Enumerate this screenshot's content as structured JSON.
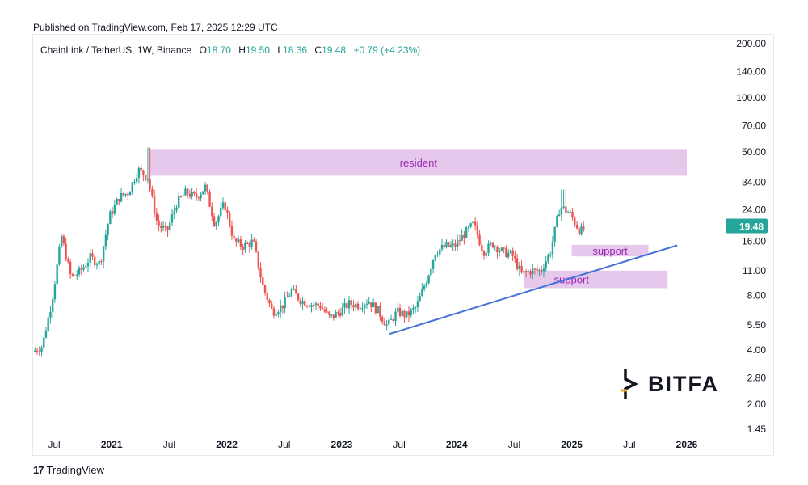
{
  "header": {
    "published": "Published on TradingView.com, Feb 17, 2025 12:29 UTC"
  },
  "legend": {
    "symbol": "ChainLink / TetherUS, 1W, Binance",
    "open_label": "O",
    "open": "18.70",
    "high_label": "H",
    "high": "19.50",
    "low_label": "L",
    "low": "18.36",
    "close_label": "C",
    "close": "19.48",
    "change": "+0.79 (+4.23%)"
  },
  "footer": {
    "brand": "TradingView",
    "brand_mark": "17"
  },
  "watermark": {
    "text": "BITFA"
  },
  "colors": {
    "up": "#26a69a",
    "down": "#ef5350",
    "zone": "#e1bee7",
    "zone_text": "#9c27b0",
    "trendline": "#4472d8",
    "price_tag": "#26a69a"
  },
  "chart_data": {
    "type": "candlestick",
    "scale": "log",
    "ylim": [
      1.3,
      230
    ],
    "y_ticks": [
      "200.00",
      "140.00",
      "100.00",
      "70.00",
      "50.00",
      "34.00",
      "24.00",
      "16.00",
      "11.00",
      "8.00",
      "5.50",
      "4.00",
      "2.80",
      "2.00",
      "1.45"
    ],
    "x_range": [
      "2020-05",
      "2026-03"
    ],
    "x_ticks": [
      {
        "label": "Jul",
        "t": "2020-07"
      },
      {
        "label": "2021",
        "t": "2021-01"
      },
      {
        "label": "Jul",
        "t": "2021-07"
      },
      {
        "label": "2022",
        "t": "2022-01"
      },
      {
        "label": "Jul",
        "t": "2022-07"
      },
      {
        "label": "2023",
        "t": "2023-01"
      },
      {
        "label": "Jul",
        "t": "2023-07"
      },
      {
        "label": "2024",
        "t": "2024-01"
      },
      {
        "label": "Jul",
        "t": "2024-07"
      },
      {
        "label": "2025",
        "t": "2025-01"
      },
      {
        "label": "Jul",
        "t": "2025-07"
      },
      {
        "label": "2026",
        "t": "2026-01"
      }
    ],
    "current_price": "19.48",
    "price_path": [
      [
        "2020-05",
        3.9
      ],
      [
        "2020-06",
        4.2
      ],
      [
        "2020-07",
        7.5
      ],
      [
        "2020-08",
        17
      ],
      [
        "2020-09",
        10
      ],
      [
        "2020-10",
        11
      ],
      [
        "2020-11",
        13
      ],
      [
        "2020-12",
        12
      ],
      [
        "2021-01",
        22
      ],
      [
        "2021-02",
        28
      ],
      [
        "2021-03",
        30
      ],
      [
        "2021-04",
        40
      ],
      [
        "2021-05",
        36
      ],
      [
        "2021-06",
        20
      ],
      [
        "2021-07",
        18
      ],
      [
        "2021-08",
        26
      ],
      [
        "2021-09",
        30
      ],
      [
        "2021-10",
        28
      ],
      [
        "2021-11",
        32
      ],
      [
        "2021-12",
        20
      ],
      [
        "2022-01",
        26
      ],
      [
        "2022-02",
        16
      ],
      [
        "2022-03",
        15
      ],
      [
        "2022-04",
        16
      ],
      [
        "2022-05",
        9
      ],
      [
        "2022-06",
        6.5
      ],
      [
        "2022-07",
        7
      ],
      [
        "2022-08",
        8.5
      ],
      [
        "2022-09",
        7.5
      ],
      [
        "2022-10",
        7.2
      ],
      [
        "2022-11",
        7
      ],
      [
        "2022-12",
        6
      ],
      [
        "2023-01",
        6.5
      ],
      [
        "2023-02",
        7.2
      ],
      [
        "2023-03",
        7.1
      ],
      [
        "2023-04",
        7.5
      ],
      [
        "2023-05",
        6.6
      ],
      [
        "2023-06",
        5.4
      ],
      [
        "2023-07",
        6.5
      ],
      [
        "2023-08",
        6.2
      ],
      [
        "2023-09",
        6.9
      ],
      [
        "2023-10",
        9.5
      ],
      [
        "2023-11",
        14
      ],
      [
        "2023-12",
        15
      ],
      [
        "2024-01",
        15
      ],
      [
        "2024-02",
        17.5
      ],
      [
        "2024-03",
        20
      ],
      [
        "2024-04",
        14
      ],
      [
        "2024-05",
        15.5
      ],
      [
        "2024-06",
        14
      ],
      [
        "2024-07",
        13.5
      ],
      [
        "2024-08",
        10.5
      ],
      [
        "2024-09",
        11
      ],
      [
        "2024-10",
        11
      ],
      [
        "2024-11",
        14
      ],
      [
        "2024-12",
        25
      ],
      [
        "2025-01",
        23
      ],
      [
        "2025-02",
        18.5
      ]
    ],
    "zones": [
      {
        "label": "resident",
        "y_low": 37,
        "y_high": 52,
        "t_start": "2021-05",
        "t_end": "2026-01"
      },
      {
        "label": "support",
        "y_low": 13.2,
        "y_high": 15.3,
        "t_start": "2025-01",
        "t_end": "2025-09"
      },
      {
        "label": "support",
        "y_low": 8.8,
        "y_high": 11.0,
        "t_start": "2024-08",
        "t_end": "2025-11"
      }
    ],
    "trendline": {
      "t_start": "2023-06",
      "y_start": 4.9,
      "t_end": "2025-12",
      "y_end": 15.2
    }
  }
}
